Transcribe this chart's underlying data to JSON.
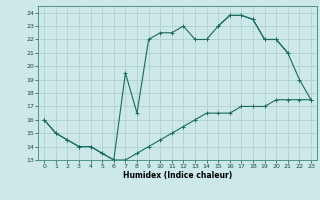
{
  "xlabel": "Humidex (Indice chaleur)",
  "xlim": [
    -0.5,
    23.5
  ],
  "ylim": [
    13,
    24.5
  ],
  "yticks": [
    13,
    14,
    15,
    16,
    17,
    18,
    19,
    20,
    21,
    22,
    23,
    24
  ],
  "xticks": [
    0,
    1,
    2,
    3,
    4,
    5,
    6,
    7,
    8,
    9,
    10,
    11,
    12,
    13,
    14,
    15,
    16,
    17,
    18,
    19,
    20,
    21,
    22,
    23
  ],
  "bg_color": "#cce8e8",
  "grid_color": "#aacccc",
  "line_color": "#1a6a60",
  "line1_x": [
    0,
    1,
    2,
    3,
    4,
    5,
    6,
    7,
    8,
    9,
    10,
    11,
    12,
    13,
    14,
    15,
    16,
    17,
    18,
    19,
    20,
    21,
    22,
    23
  ],
  "line1_y": [
    16,
    15,
    14.5,
    14,
    14,
    13.5,
    13,
    13,
    13.5,
    14,
    14.5,
    15,
    15.5,
    16,
    16.5,
    16.5,
    16.5,
    17,
    17,
    17,
    17.5,
    17.5,
    17.5,
    17.5
  ],
  "line2_x": [
    0,
    1,
    2,
    3,
    4,
    5,
    6,
    7,
    8,
    9,
    10,
    11,
    12,
    13,
    14,
    15,
    16,
    17,
    18,
    19,
    20,
    21,
    22,
    23
  ],
  "line2_y": [
    16,
    15,
    14.5,
    14,
    14,
    13.5,
    13,
    19.5,
    16.5,
    22,
    22.5,
    22.5,
    23,
    22,
    22,
    23,
    23.8,
    23.8,
    23.5,
    22,
    22,
    21,
    19,
    17.5
  ],
  "line3_x": [
    15,
    16,
    17,
    18,
    19,
    20,
    21
  ],
  "line3_y": [
    23,
    23.8,
    23.8,
    23.5,
    22,
    22,
    21
  ]
}
